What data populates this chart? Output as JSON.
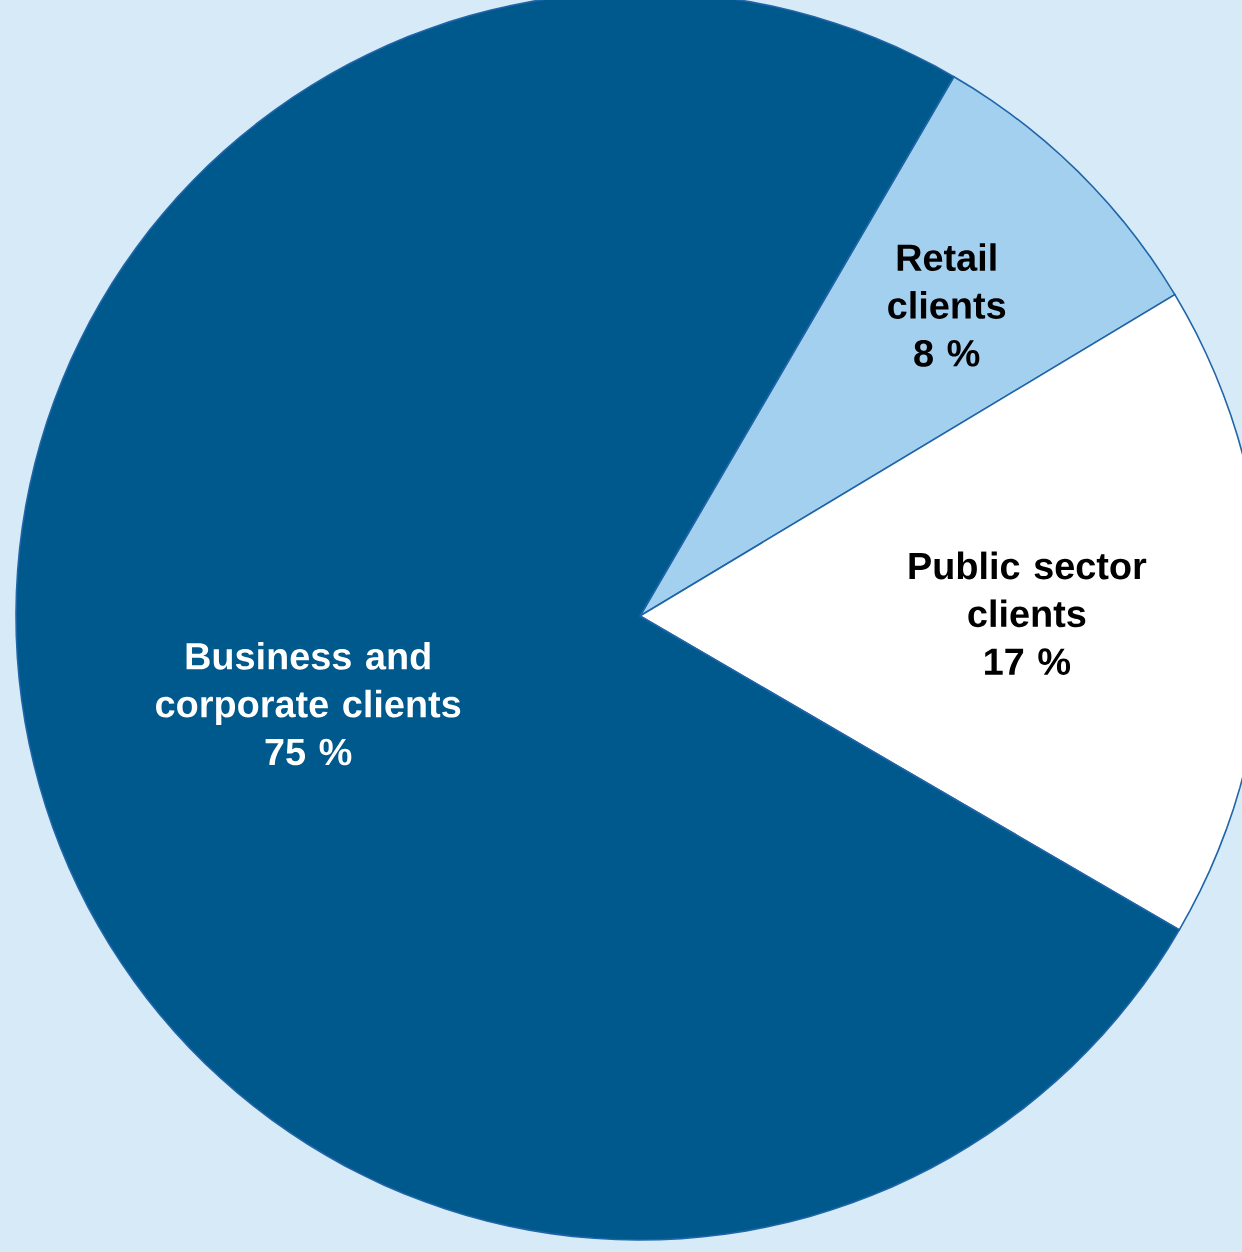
{
  "chart_data": {
    "type": "pie",
    "categories": [
      "Retail clients",
      "Public sector clients",
      "Business and corporate clients"
    ],
    "values": [
      8,
      17,
      75
    ],
    "value_labels": [
      "8 %",
      "17 %",
      "75 %"
    ],
    "colors": [
      "#a3d0ee",
      "#ffffff",
      "#00598c"
    ]
  }
}
